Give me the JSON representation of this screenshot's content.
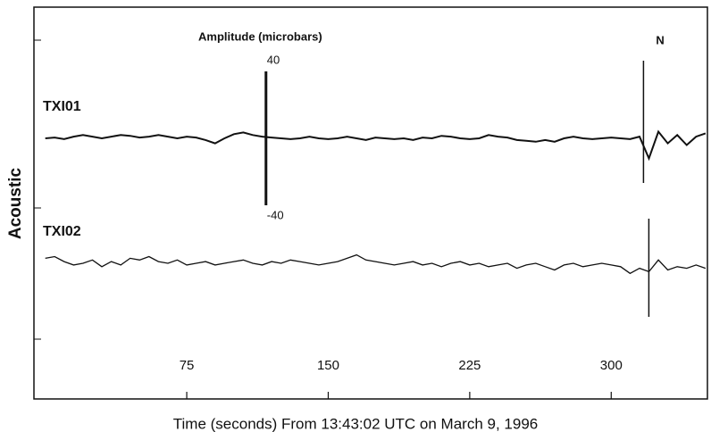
{
  "chart_data": {
    "type": "waveform",
    "xlabel": "Time (seconds) From 13:43:02 UTC on March 9, 1996",
    "ylabel": "Acoustic",
    "xlim": [
      -6,
      351
    ],
    "xticks": [
      75,
      150,
      225,
      300
    ],
    "x": [
      0,
      5,
      10,
      15,
      20,
      25,
      30,
      35,
      40,
      45,
      50,
      55,
      60,
      65,
      70,
      75,
      80,
      85,
      90,
      95,
      100,
      105,
      110,
      115,
      120,
      125,
      130,
      135,
      140,
      145,
      150,
      155,
      160,
      165,
      170,
      175,
      180,
      185,
      190,
      195,
      200,
      205,
      210,
      215,
      220,
      225,
      230,
      235,
      240,
      245,
      250,
      255,
      260,
      265,
      270,
      275,
      280,
      285,
      290,
      295,
      300,
      305,
      310,
      315,
      320,
      325,
      330,
      335,
      340,
      345,
      350
    ],
    "series": [
      {
        "name": "TXI01",
        "color": "#111111",
        "values": [
          0,
          0.5,
          -0.5,
          1,
          2,
          1,
          0,
          1,
          2,
          1.5,
          0.5,
          1,
          2,
          1,
          0,
          1,
          0.5,
          -1,
          -3,
          0,
          2.5,
          3.5,
          2,
          1,
          0.5,
          0,
          -0.5,
          0,
          1,
          0,
          -0.5,
          0,
          1,
          0,
          -1,
          0.5,
          0,
          -0.5,
          0,
          -1,
          0.5,
          0,
          1.5,
          1,
          0,
          -0.5,
          0,
          2,
          1,
          0.5,
          -1,
          -1.5,
          -2,
          -1,
          -2,
          0,
          1,
          0,
          -0.5,
          0,
          0.5,
          0,
          -0.5,
          1,
          -12,
          4,
          -3,
          2,
          -4,
          1,
          3
        ]
      },
      {
        "name": "TXI02",
        "color": "#111111",
        "values": [
          3,
          4,
          1,
          -1,
          0,
          2,
          -2,
          1,
          -1,
          3,
          2,
          4,
          1,
          0,
          2,
          -1,
          0,
          1,
          -1,
          0,
          1,
          2,
          0,
          -1,
          1,
          0,
          2,
          1,
          0,
          -1,
          0,
          1,
          3,
          5,
          2,
          1,
          0,
          -1,
          0,
          1,
          -1,
          0,
          -2,
          0,
          1,
          -1,
          0,
          -2,
          -1,
          0,
          -3,
          -1,
          0,
          -2,
          -4,
          -1,
          0,
          -2,
          -1,
          0,
          -1,
          -2,
          -6,
          -3,
          -5,
          2,
          -4,
          -2,
          -3,
          -1,
          -3
        ]
      }
    ],
    "scale_bar": {
      "label": "Amplitude (microbars)",
      "x": 117,
      "max": 40,
      "min": -40
    },
    "marker": {
      "text": "N",
      "x": 319
    }
  }
}
